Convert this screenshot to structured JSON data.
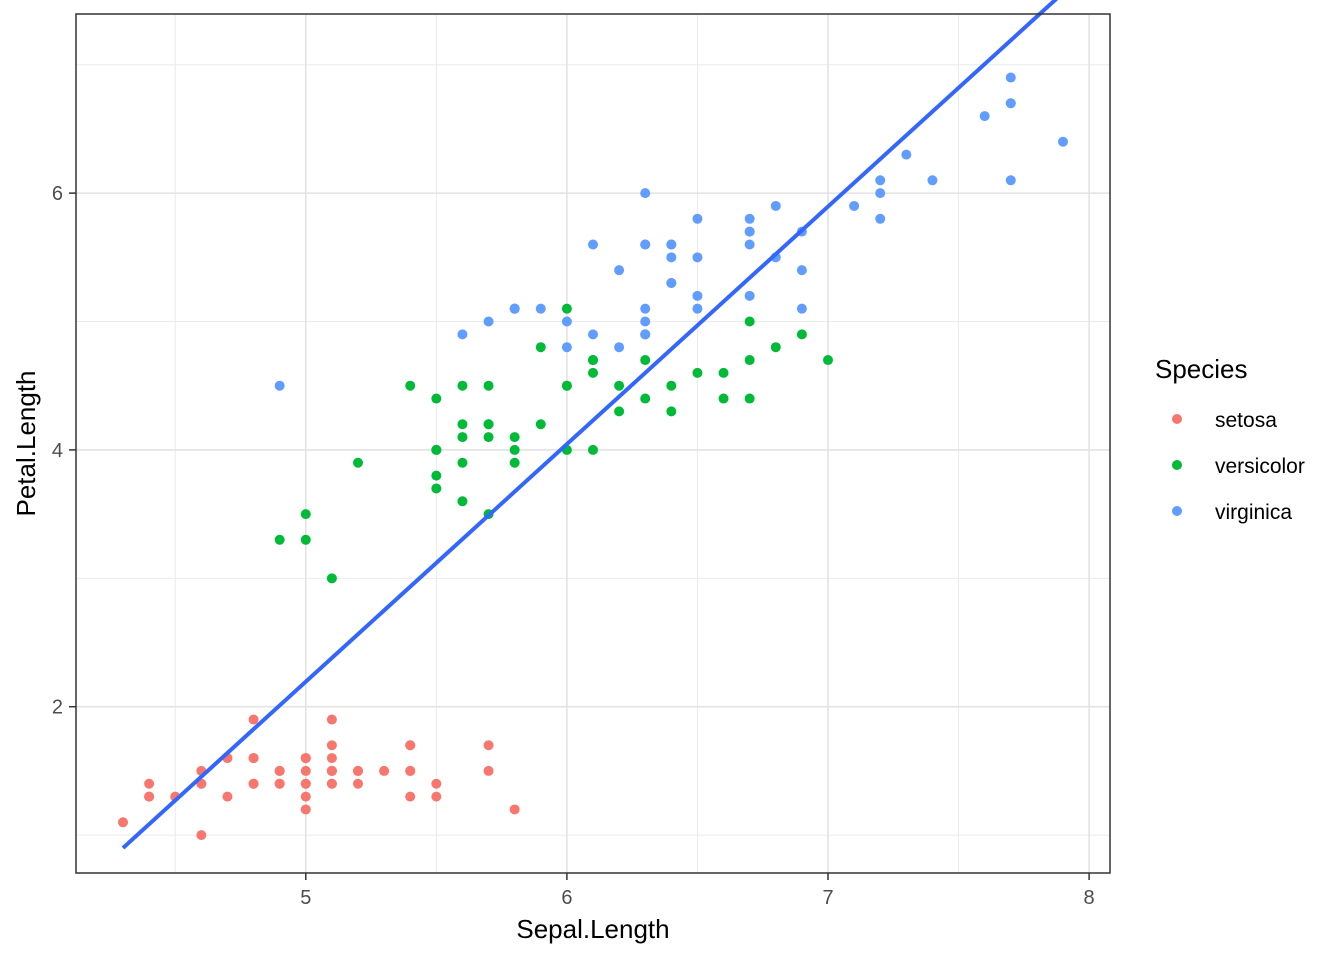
{
  "chart_data": {
    "type": "scatter",
    "xlabel": "Sepal.Length",
    "ylabel": "Petal.Length",
    "xlim": [
      4.12,
      8.08
    ],
    "ylim": [
      0.705,
      7.395
    ],
    "xticks_major": [
      5,
      6,
      7,
      8
    ],
    "xticks_minor": [
      4.5,
      5.5,
      6.5,
      7.5
    ],
    "yticks_major": [
      2,
      4,
      6
    ],
    "yticks_minor": [
      1,
      3,
      5,
      7
    ],
    "grid": true,
    "legend": {
      "title": "Species",
      "position": "right"
    },
    "series": [
      {
        "name": "setosa",
        "color": "#F8766D",
        "points": [
          [
            5.1,
            1.4
          ],
          [
            4.9,
            1.4
          ],
          [
            4.7,
            1.3
          ],
          [
            4.6,
            1.5
          ],
          [
            5.0,
            1.4
          ],
          [
            5.4,
            1.7
          ],
          [
            4.6,
            1.4
          ],
          [
            5.0,
            1.5
          ],
          [
            4.4,
            1.4
          ],
          [
            4.9,
            1.5
          ],
          [
            5.4,
            1.5
          ],
          [
            4.8,
            1.6
          ],
          [
            4.8,
            1.4
          ],
          [
            4.3,
            1.1
          ],
          [
            5.8,
            1.2
          ],
          [
            5.7,
            1.5
          ],
          [
            5.4,
            1.3
          ],
          [
            5.1,
            1.4
          ],
          [
            5.7,
            1.7
          ],
          [
            5.1,
            1.5
          ],
          [
            5.4,
            1.7
          ],
          [
            5.1,
            1.5
          ],
          [
            4.6,
            1.0
          ],
          [
            5.1,
            1.7
          ],
          [
            4.8,
            1.9
          ],
          [
            5.0,
            1.6
          ],
          [
            5.0,
            1.6
          ],
          [
            5.2,
            1.5
          ],
          [
            5.2,
            1.4
          ],
          [
            4.7,
            1.6
          ],
          [
            4.8,
            1.6
          ],
          [
            5.4,
            1.5
          ],
          [
            5.2,
            1.5
          ],
          [
            5.5,
            1.4
          ],
          [
            4.9,
            1.5
          ],
          [
            5.0,
            1.2
          ],
          [
            5.5,
            1.3
          ],
          [
            4.9,
            1.4
          ],
          [
            4.4,
            1.3
          ],
          [
            5.1,
            1.5
          ],
          [
            5.0,
            1.3
          ],
          [
            4.5,
            1.3
          ],
          [
            4.4,
            1.3
          ],
          [
            5.0,
            1.6
          ],
          [
            5.1,
            1.9
          ],
          [
            4.8,
            1.4
          ],
          [
            5.1,
            1.6
          ],
          [
            4.6,
            1.4
          ],
          [
            5.3,
            1.5
          ],
          [
            5.0,
            1.4
          ]
        ]
      },
      {
        "name": "versicolor",
        "color": "#00BA38",
        "points": [
          [
            7.0,
            4.7
          ],
          [
            6.4,
            4.5
          ],
          [
            6.9,
            4.9
          ],
          [
            5.5,
            4.0
          ],
          [
            6.5,
            4.6
          ],
          [
            5.7,
            4.5
          ],
          [
            6.3,
            4.7
          ],
          [
            4.9,
            3.3
          ],
          [
            6.6,
            4.6
          ],
          [
            5.2,
            3.9
          ],
          [
            5.0,
            3.5
          ],
          [
            5.9,
            4.2
          ],
          [
            6.0,
            4.0
          ],
          [
            6.1,
            4.7
          ],
          [
            5.6,
            3.6
          ],
          [
            6.7,
            4.4
          ],
          [
            5.6,
            4.5
          ],
          [
            5.8,
            4.1
          ],
          [
            6.2,
            4.5
          ],
          [
            5.6,
            3.9
          ],
          [
            5.9,
            4.8
          ],
          [
            6.1,
            4.0
          ],
          [
            6.3,
            4.9
          ],
          [
            6.1,
            4.7
          ],
          [
            6.4,
            4.3
          ],
          [
            6.6,
            4.4
          ],
          [
            6.8,
            4.8
          ],
          [
            6.7,
            5.0
          ],
          [
            6.0,
            4.5
          ],
          [
            5.7,
            3.5
          ],
          [
            5.5,
            3.8
          ],
          [
            5.5,
            3.7
          ],
          [
            5.8,
            3.9
          ],
          [
            6.0,
            5.1
          ],
          [
            5.4,
            4.5
          ],
          [
            6.0,
            4.5
          ],
          [
            6.7,
            4.7
          ],
          [
            6.3,
            4.4
          ],
          [
            5.6,
            4.1
          ],
          [
            5.5,
            4.0
          ],
          [
            5.5,
            4.4
          ],
          [
            6.1,
            4.6
          ],
          [
            5.8,
            4.0
          ],
          [
            5.0,
            3.3
          ],
          [
            5.6,
            4.2
          ],
          [
            5.7,
            4.2
          ],
          [
            5.7,
            4.2
          ],
          [
            6.2,
            4.3
          ],
          [
            5.1,
            3.0
          ],
          [
            5.7,
            4.1
          ]
        ]
      },
      {
        "name": "virginica",
        "color": "#619CFF",
        "points": [
          [
            6.3,
            6.0
          ],
          [
            5.8,
            5.1
          ],
          [
            7.1,
            5.9
          ],
          [
            6.3,
            5.6
          ],
          [
            6.5,
            5.8
          ],
          [
            7.6,
            6.6
          ],
          [
            4.9,
            4.5
          ],
          [
            7.3,
            6.3
          ],
          [
            6.7,
            5.8
          ],
          [
            7.2,
            6.1
          ],
          [
            6.5,
            5.1
          ],
          [
            6.4,
            5.3
          ],
          [
            6.8,
            5.5
          ],
          [
            5.7,
            5.0
          ],
          [
            5.8,
            5.1
          ],
          [
            6.4,
            5.3
          ],
          [
            6.5,
            5.5
          ],
          [
            7.7,
            6.7
          ],
          [
            7.7,
            6.9
          ],
          [
            6.0,
            5.0
          ],
          [
            6.9,
            5.7
          ],
          [
            5.6,
            4.9
          ],
          [
            7.7,
            6.7
          ],
          [
            6.3,
            4.9
          ],
          [
            6.7,
            5.7
          ],
          [
            7.2,
            6.0
          ],
          [
            6.2,
            4.8
          ],
          [
            6.1,
            4.9
          ],
          [
            6.4,
            5.6
          ],
          [
            7.2,
            5.8
          ],
          [
            7.4,
            6.1
          ],
          [
            7.9,
            6.4
          ],
          [
            6.4,
            5.6
          ],
          [
            6.3,
            5.1
          ],
          [
            6.1,
            5.6
          ],
          [
            7.7,
            6.1
          ],
          [
            6.3,
            5.6
          ],
          [
            6.4,
            5.5
          ],
          [
            6.0,
            4.8
          ],
          [
            6.9,
            5.4
          ],
          [
            6.7,
            5.6
          ],
          [
            6.9,
            5.1
          ],
          [
            5.8,
            5.1
          ],
          [
            6.8,
            5.9
          ],
          [
            6.7,
            5.7
          ],
          [
            6.7,
            5.2
          ],
          [
            6.3,
            5.0
          ],
          [
            6.5,
            5.2
          ],
          [
            6.2,
            5.4
          ],
          [
            5.9,
            5.1
          ]
        ]
      }
    ],
    "trend_line": {
      "color": "#3366FF",
      "method": "linear",
      "x": [
        4.3,
        7.9
      ],
      "y": [
        0.9,
        7.56
      ]
    }
  }
}
